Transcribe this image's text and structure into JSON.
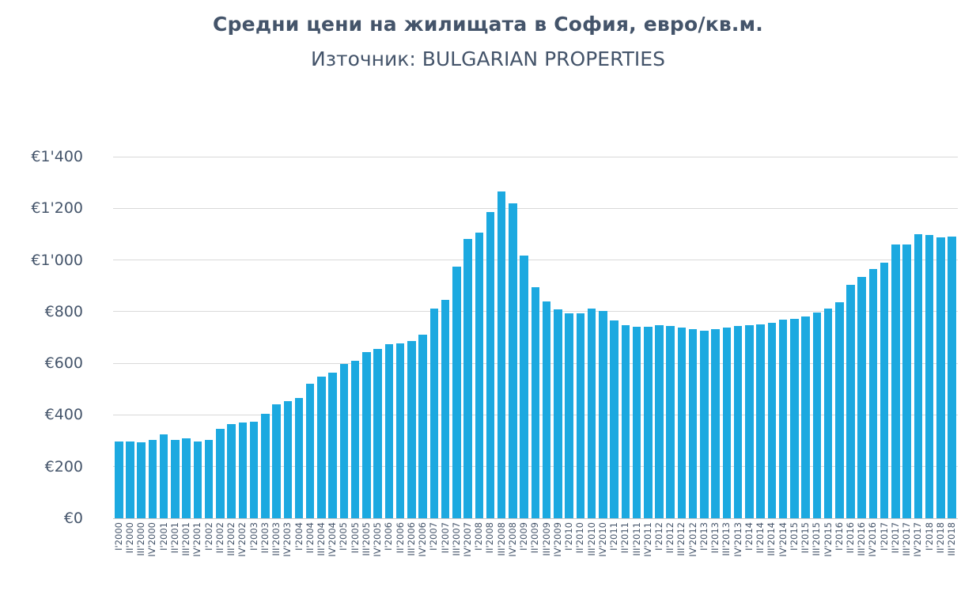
{
  "title": "Средни цени на жилищата в София, евро/кв.м.",
  "subtitle": "Източник: BULGARIAN PROPERTIES",
  "colors": {
    "bar": "#1ca9e0",
    "text": "#44546a",
    "gridline": "#d9d9d9"
  },
  "chart_data": {
    "type": "bar",
    "title": "Средни цени на жилищата в София, евро/кв.м.",
    "subtitle": "Източник: BULGARIAN PROPERTIES",
    "xlabel": "",
    "ylabel": "",
    "grid": true,
    "legend": false,
    "bar_color": "#1ca9e0",
    "y_axis": {
      "min": 0,
      "max": 1400,
      "step": 200,
      "tick_labels": [
        "€0",
        "€200",
        "€400",
        "€600",
        "€800",
        "€1'000",
        "€1'200",
        "€1'400"
      ]
    },
    "categories": [
      "I'2000",
      "II'2000",
      "III'2000",
      "IV'2000",
      "I'2001",
      "II'2001",
      "III'2001",
      "IV'2001",
      "I'2002",
      "II'2002",
      "III'2002",
      "IV'2002",
      "I'2003",
      "II'2003",
      "III'2003",
      "IV'2003",
      "I'2004",
      "II'2004",
      "III'2004",
      "IV'2004",
      "I'2005",
      "II'2005",
      "III'2005",
      "IV'2005",
      "I'2006",
      "II'2006",
      "III'2006",
      "IV'2006",
      "I'2007",
      "II'2007",
      "III'2007",
      "IV'2007",
      "I'2008",
      "II'2008",
      "III'2008",
      "IV'2008",
      "I'2009",
      "II'2009",
      "III'2009",
      "IV'2009",
      "I'2010",
      "II'2010",
      "III'2010",
      "IV'2010",
      "I'2011",
      "II'2011",
      "III'2011",
      "IV'2011",
      "I'2012",
      "II'2012",
      "III'2012",
      "IV'2012",
      "I'2013",
      "II'2013",
      "III'2013",
      "IV'2013",
      "I'2014",
      "II'2014",
      "III'2014",
      "IV'2014",
      "I'2015",
      "II'2015",
      "III'2015",
      "IV'2015",
      "I'2016",
      "II'2016",
      "III'2016",
      "IV'2016",
      "I'2017",
      "II'2017",
      "III'2017",
      "IV'2017",
      "I'2018",
      "II'2018",
      "III'2018"
    ],
    "values": [
      297,
      297,
      294,
      302,
      325,
      302,
      309,
      297,
      302,
      347,
      365,
      372,
      375,
      405,
      441,
      454,
      467,
      520,
      548,
      563,
      596,
      610,
      643,
      657,
      675,
      678,
      687,
      710,
      812,
      845,
      975,
      1082,
      1106,
      1185,
      1266,
      1218,
      1018,
      894,
      840,
      810,
      793,
      793,
      813,
      803,
      765,
      748,
      742,
      742,
      749,
      745,
      739,
      733,
      725,
      731,
      738,
      744,
      748,
      752,
      757,
      768,
      772,
      780,
      796,
      813,
      837,
      904,
      935,
      964,
      990,
      1060,
      1060,
      1100,
      1096,
      1088,
      1092
    ]
  }
}
